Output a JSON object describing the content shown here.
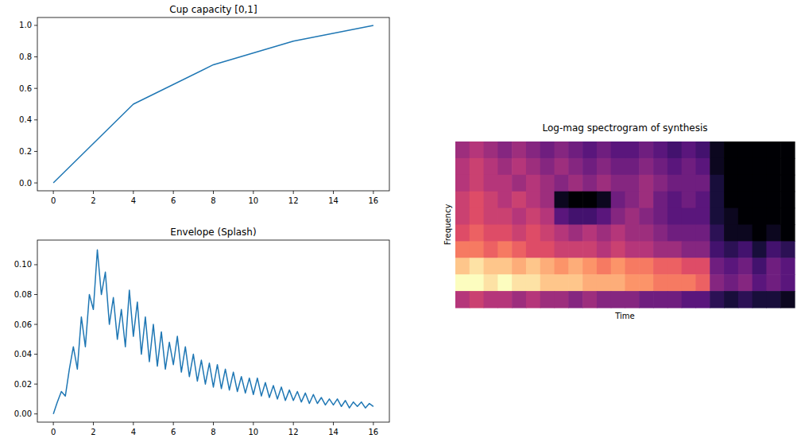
{
  "chart_data": [
    {
      "type": "line",
      "title": "Cup capacity [0,1]",
      "color": "#1f77b4",
      "x": [
        0,
        4,
        8,
        12,
        16
      ],
      "values": [
        0,
        0.5,
        0.75,
        0.9,
        1.0
      ],
      "xlim": [
        -0.8,
        16.8
      ],
      "xticks": [
        0,
        2,
        4,
        6,
        8,
        10,
        12,
        14,
        16
      ],
      "ylim": [
        -0.05,
        1.05
      ],
      "yticks": [
        {
          "value": 0,
          "label": "0.0"
        },
        {
          "value": 0.2,
          "label": "0.2"
        },
        {
          "value": 0.4,
          "label": "0.4"
        },
        {
          "value": 0.6,
          "label": "0.6"
        },
        {
          "value": 0.8,
          "label": "0.8"
        },
        {
          "value": 1.0,
          "label": "1.0"
        }
      ],
      "grid": false
    },
    {
      "type": "line",
      "title": "Envelope (Splash)",
      "color": "#1f77b4",
      "x": [
        0,
        0.2,
        0.4,
        0.6,
        0.8,
        1,
        1.2,
        1.4,
        1.6,
        1.8,
        2,
        2.2,
        2.4,
        2.6,
        2.8,
        3,
        3.2,
        3.4,
        3.6,
        3.8,
        4,
        4.2,
        4.4,
        4.6,
        4.8,
        5,
        5.2,
        5.4,
        5.6,
        5.8,
        6,
        6.2,
        6.4,
        6.6,
        6.8,
        7,
        7.2,
        7.4,
        7.6,
        7.8,
        8,
        8.2,
        8.4,
        8.6,
        8.8,
        9,
        9.2,
        9.4,
        9.6,
        9.8,
        10,
        10.2,
        10.4,
        10.6,
        10.8,
        11,
        11.2,
        11.4,
        11.6,
        11.8,
        12,
        12.2,
        12.4,
        12.6,
        12.8,
        13,
        13.2,
        13.4,
        13.6,
        13.8,
        14,
        14.2,
        14.4,
        14.6,
        14.8,
        15,
        15.2,
        15.4,
        15.6,
        15.8,
        16
      ],
      "values": [
        0,
        0.008,
        0.015,
        0.012,
        0.03,
        0.045,
        0.03,
        0.065,
        0.045,
        0.08,
        0.07,
        0.11,
        0.08,
        0.095,
        0.06,
        0.078,
        0.05,
        0.07,
        0.045,
        0.083,
        0.052,
        0.075,
        0.04,
        0.065,
        0.035,
        0.06,
        0.032,
        0.055,
        0.03,
        0.048,
        0.033,
        0.052,
        0.028,
        0.045,
        0.025,
        0.04,
        0.022,
        0.036,
        0.02,
        0.034,
        0.018,
        0.033,
        0.017,
        0.03,
        0.016,
        0.028,
        0.015,
        0.025,
        0.014,
        0.024,
        0.013,
        0.024,
        0.012,
        0.021,
        0.011,
        0.019,
        0.01,
        0.018,
        0.009,
        0.016,
        0.009,
        0.015,
        0.008,
        0.014,
        0.007,
        0.013,
        0.007,
        0.011,
        0.006,
        0.01,
        0.006,
        0.01,
        0.005,
        0.009,
        0.004,
        0.008,
        0.005,
        0.008,
        0.004,
        0.007,
        0.005
      ],
      "xlim": [
        -0.8,
        16.8
      ],
      "xticks": [
        0,
        2,
        4,
        6,
        8,
        10,
        12,
        14,
        16
      ],
      "ylim": [
        -0.0055,
        0.1165
      ],
      "yticks": [
        {
          "value": 0,
          "label": "0.00"
        },
        {
          "value": 0.02,
          "label": "0.02"
        },
        {
          "value": 0.04,
          "label": "0.04"
        },
        {
          "value": 0.06,
          "label": "0.06"
        },
        {
          "value": 0.08,
          "label": "0.08"
        },
        {
          "value": 0.1,
          "label": "0.10"
        }
      ],
      "grid": false
    },
    {
      "type": "heatmap",
      "title": "Log-mag spectrogram of synthesis",
      "xlabel": "Time",
      "ylabel": "Frequency",
      "tick_labels": false,
      "cells": [
        [
          0.45,
          0.5,
          0.45,
          0.4,
          0.45,
          0.4,
          0.35,
          0.4,
          0.35,
          0.3,
          0.35,
          0.3,
          0.3,
          0.35,
          0.3,
          0.25,
          0.3,
          0.25,
          0.1,
          0.05,
          0.05,
          0.05,
          0.05,
          0.05
        ],
        [
          0.5,
          0.55,
          0.5,
          0.45,
          0.5,
          0.45,
          0.4,
          0.45,
          0.4,
          0.35,
          0.4,
          0.35,
          0.35,
          0.4,
          0.35,
          0.3,
          0.35,
          0.3,
          0.1,
          0.05,
          0.05,
          0.05,
          0.05,
          0.05
        ],
        [
          0.5,
          0.55,
          0.5,
          0.5,
          0.45,
          0.5,
          0.45,
          0.4,
          0.45,
          0.4,
          0.45,
          0.4,
          0.4,
          0.45,
          0.4,
          0.35,
          0.35,
          0.35,
          0.15,
          0.05,
          0.05,
          0.05,
          0.05,
          0.05
        ],
        [
          0.55,
          0.6,
          0.55,
          0.5,
          0.55,
          0.5,
          0.45,
          0.1,
          0.05,
          0.05,
          0.1,
          0.35,
          0.4,
          0.45,
          0.35,
          0.3,
          0.35,
          0.3,
          0.15,
          0.05,
          0.05,
          0.05,
          0.05,
          0.05
        ],
        [
          0.55,
          0.6,
          0.55,
          0.55,
          0.5,
          0.55,
          0.5,
          0.3,
          0.25,
          0.25,
          0.3,
          0.4,
          0.45,
          0.4,
          0.35,
          0.3,
          0.3,
          0.3,
          0.15,
          0.1,
          0.05,
          0.05,
          0.05,
          0.05
        ],
        [
          0.6,
          0.65,
          0.6,
          0.6,
          0.55,
          0.6,
          0.55,
          0.5,
          0.45,
          0.5,
          0.45,
          0.5,
          0.45,
          0.45,
          0.4,
          0.35,
          0.35,
          0.35,
          0.2,
          0.1,
          0.1,
          0.05,
          0.1,
          0.05
        ],
        [
          0.7,
          0.7,
          0.65,
          0.7,
          0.65,
          0.6,
          0.6,
          0.55,
          0.55,
          0.55,
          0.5,
          0.55,
          0.5,
          0.5,
          0.45,
          0.45,
          0.4,
          0.4,
          0.25,
          0.2,
          0.25,
          0.15,
          0.25,
          0.2
        ],
        [
          0.85,
          0.9,
          0.85,
          0.85,
          0.8,
          0.85,
          0.8,
          0.75,
          0.8,
          0.75,
          0.7,
          0.75,
          0.7,
          0.7,
          0.65,
          0.65,
          0.6,
          0.6,
          0.35,
          0.3,
          0.35,
          0.25,
          0.35,
          0.3
        ],
        [
          0.95,
          0.95,
          0.9,
          0.95,
          0.9,
          0.9,
          0.85,
          0.85,
          0.85,
          0.8,
          0.8,
          0.8,
          0.75,
          0.75,
          0.7,
          0.7,
          0.7,
          0.65,
          0.4,
          0.35,
          0.4,
          0.3,
          0.35,
          0.3
        ],
        [
          0.5,
          0.55,
          0.5,
          0.5,
          0.45,
          0.5,
          0.45,
          0.45,
          0.4,
          0.45,
          0.4,
          0.4,
          0.4,
          0.35,
          0.35,
          0.35,
          0.3,
          0.3,
          0.2,
          0.15,
          0.2,
          0.15,
          0.15,
          0.1
        ]
      ]
    }
  ]
}
